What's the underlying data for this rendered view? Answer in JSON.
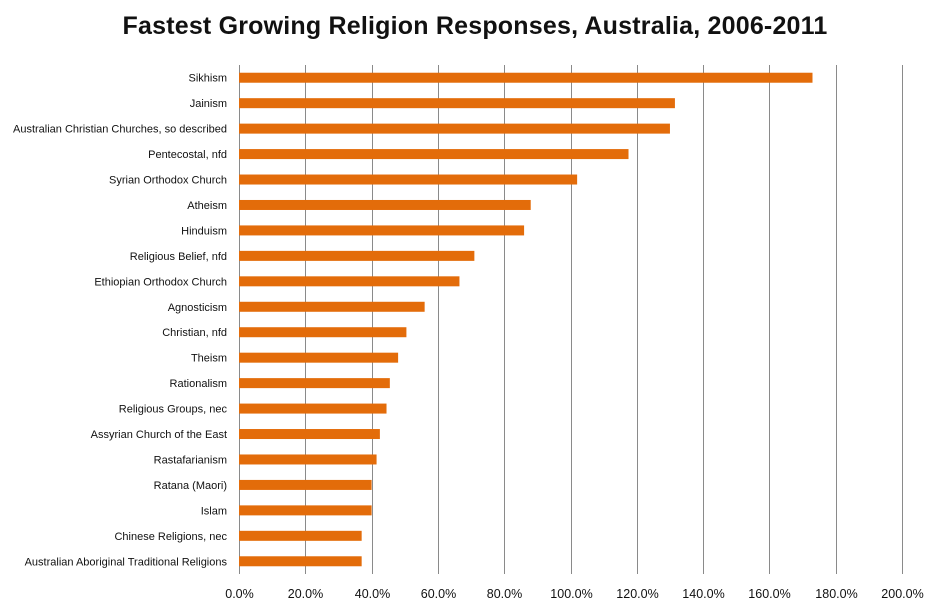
{
  "chart_data": {
    "type": "bar",
    "orientation": "horizontal",
    "title": "Fastest Growing Religion Responses, Australia, 2006-2011",
    "xlabel": "",
    "ylabel": "",
    "categories": [
      "Sikhism",
      "Jainism",
      "Australian Christian Churches, so described",
      "Pentecostal, nfd",
      "Syrian Orthodox Church",
      "Atheism",
      "Hinduism",
      "Religious Belief, nfd",
      "Ethiopian Orthodox Church",
      "Agnosticism",
      "Christian, nfd",
      "Theism",
      "Rationalism",
      "Religious Groups, nec",
      "Assyrian Church of the East",
      "Rastafarianism",
      "Ratana (Maori)",
      "Islam",
      "Chinese Religions, nec",
      "Australian Aboriginal Traditional Religions"
    ],
    "values": [
      173.0,
      131.5,
      130.0,
      117.5,
      102.0,
      88.0,
      86.0,
      71.0,
      66.5,
      56.0,
      50.5,
      48.0,
      45.5,
      44.5,
      42.5,
      41.5,
      40.0,
      40.0,
      37.0,
      37.0
    ],
    "xlim": [
      0,
      200
    ],
    "x_ticks": [
      "0.0%",
      "20.0%",
      "40.0%",
      "60.0%",
      "80.0%",
      "100.0%",
      "120.0%",
      "140.0%",
      "160.0%",
      "180.0%",
      "200.0%"
    ],
    "grid": "vertical",
    "legend": "none",
    "bar_color": "#e36c0a"
  }
}
